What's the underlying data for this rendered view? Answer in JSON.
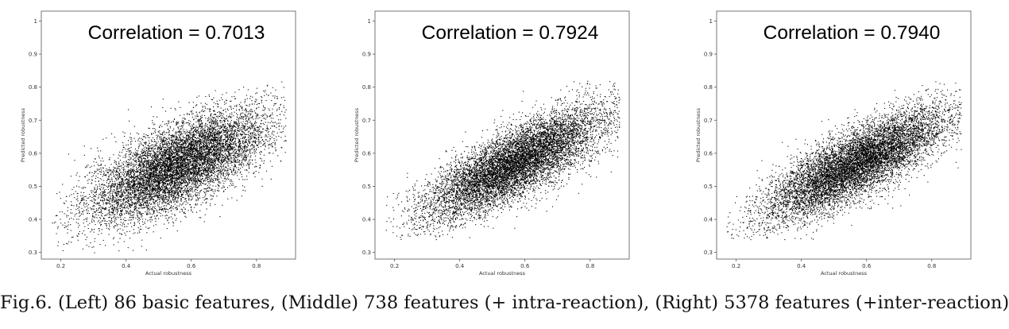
{
  "caption": "Fig.6. (Left) 86 basic features, (Middle) 738 features (+ intra-reaction), (Right) 5378 features (+inter-reaction)",
  "chart_data": [
    {
      "type": "scatter",
      "annotation": "Correlation = 0.7013",
      "correlation": 0.7013,
      "xlabel": "Actual robustness",
      "ylabel": "Predicted robustness",
      "xlim": [
        0.14,
        0.92
      ],
      "ylim": [
        0.28,
        1.03
      ],
      "xticks": [
        "0.2",
        "0.4",
        "0.6",
        "0.8"
      ],
      "yticks": [
        "0.3",
        "0.4",
        "0.5",
        "0.6",
        "0.7",
        "0.8",
        "0.9",
        "1"
      ],
      "n_points": 9000,
      "x_mean": 0.56,
      "x_sd": 0.14,
      "y_mean": 0.565,
      "y_sd": 0.085,
      "x_range": [
        0.17,
        0.89
      ],
      "y_range": [
        0.3,
        0.83
      ],
      "marker_color": "#000000"
    },
    {
      "type": "scatter",
      "annotation": "Correlation = 0.7924",
      "correlation": 0.7924,
      "xlabel": "Actual robustness",
      "ylabel": "Predicted robustness",
      "xlim": [
        0.14,
        0.92
      ],
      "ylim": [
        0.28,
        1.03
      ],
      "xticks": [
        "0.2",
        "0.4",
        "0.6",
        "0.8"
      ],
      "yticks": [
        "0.3",
        "0.4",
        "0.5",
        "0.6",
        "0.7",
        "0.8",
        "0.9",
        "1"
      ],
      "n_points": 9000,
      "x_mean": 0.57,
      "x_sd": 0.14,
      "y_mean": 0.57,
      "y_sd": 0.085,
      "x_range": [
        0.17,
        0.89
      ],
      "y_range": [
        0.34,
        0.82
      ],
      "marker_color": "#000000"
    },
    {
      "type": "scatter",
      "annotation": "Correlation = 0.7940",
      "correlation": 0.794,
      "xlabel": "Actual robustness",
      "ylabel": "Predicted robustness",
      "xlim": [
        0.14,
        0.92
      ],
      "ylim": [
        0.28,
        1.03
      ],
      "xticks": [
        "0.2",
        "0.4",
        "0.6",
        "0.8"
      ],
      "yticks": [
        "0.3",
        "0.4",
        "0.5",
        "0.6",
        "0.7",
        "0.8",
        "0.9",
        "1"
      ],
      "n_points": 9000,
      "x_mean": 0.57,
      "x_sd": 0.14,
      "y_mean": 0.57,
      "y_sd": 0.085,
      "x_range": [
        0.17,
        0.89
      ],
      "y_range": [
        0.34,
        0.82
      ],
      "marker_color": "#000000"
    }
  ]
}
